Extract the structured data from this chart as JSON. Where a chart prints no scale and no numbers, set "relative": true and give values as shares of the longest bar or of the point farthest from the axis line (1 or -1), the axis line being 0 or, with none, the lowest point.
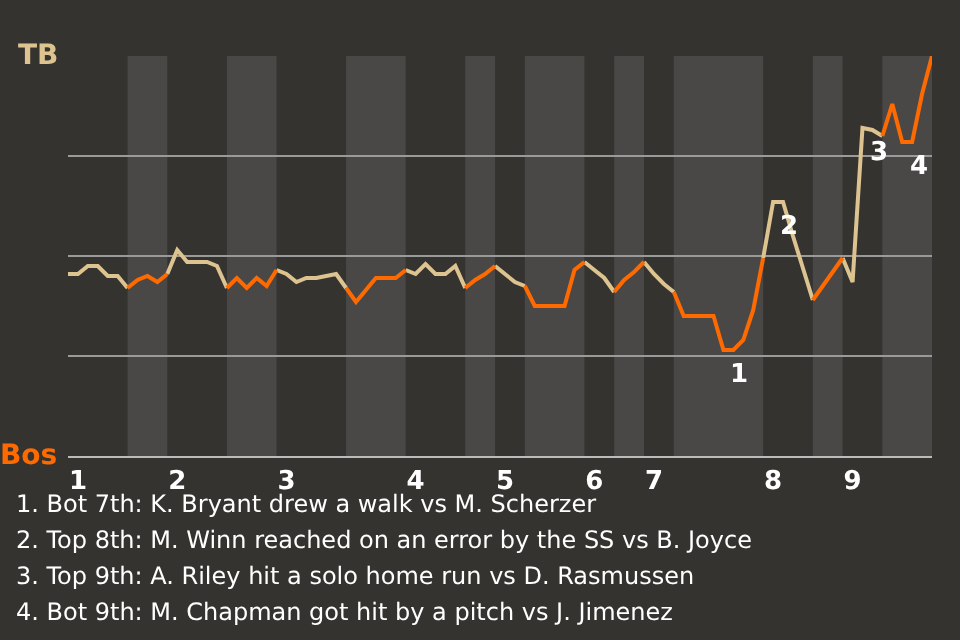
{
  "chart_data": {
    "type": "line",
    "relative": true,
    "categories": [
      null,
      "1",
      null,
      null,
      null,
      null,
      null,
      null,
      null,
      null,
      null,
      "2",
      null,
      null,
      null,
      null,
      null,
      null,
      null,
      null,
      null,
      null,
      "3",
      null,
      null,
      null,
      null,
      null,
      null,
      null,
      null,
      null,
      null,
      null,
      null,
      "4",
      null,
      null,
      null,
      null,
      null,
      null,
      null,
      null,
      "5",
      null,
      null,
      null,
      null,
      null,
      null,
      null,
      null,
      "6",
      null,
      null,
      null,
      null,
      null,
      "7",
      null,
      null,
      null,
      null,
      null,
      null,
      null,
      null,
      null,
      null,
      null,
      "8",
      null,
      null,
      null,
      null,
      null,
      null,
      null,
      "9",
      null,
      null,
      null,
      null,
      null,
      null,
      null,
      null
    ],
    "series": [
      {
        "name": "TB",
        "color": "#dcc38f",
        "values": [
          0.455,
          0.455,
          0.475,
          0.475,
          0.45,
          0.45,
          0.42,
          null,
          null,
          null,
          0.455,
          0.515,
          0.485,
          0.485,
          0.485,
          0.475,
          0.42,
          null,
          null,
          null,
          null,
          0.465,
          0.455,
          0.435,
          0.445,
          0.445,
          0.45,
          0.455,
          0.42,
          null,
          null,
          null,
          null,
          null,
          0.465,
          0.455,
          0.48,
          0.455,
          0.455,
          0.475,
          0.42,
          null,
          null,
          0.475,
          0.455,
          0.435,
          0.425,
          null,
          null,
          null,
          null,
          null,
          0.485,
          0.465,
          0.445,
          0.41,
          null,
          null,
          0.485,
          0.455,
          0.43,
          0.41,
          null,
          null,
          null,
          null,
          null,
          null,
          null,
          null,
          0.495,
          0.635,
          0.635,
          0.55,
          0.47,
          0.39,
          null,
          null,
          0.495,
          0.435,
          0.82,
          0.815,
          0.8,
          null,
          null,
          null,
          null,
          null
        ]
      },
      {
        "name": "Bos",
        "color": "#ff6a00",
        "values": [
          null,
          null,
          null,
          null,
          null,
          null,
          0.42,
          0.44,
          0.45,
          0.435,
          0.455,
          null,
          null,
          null,
          null,
          null,
          0.42,
          0.445,
          0.42,
          0.445,
          0.425,
          0.465,
          null,
          null,
          null,
          null,
          null,
          null,
          0.42,
          0.385,
          0.415,
          0.445,
          0.445,
          0.445,
          0.465,
          null,
          null,
          null,
          null,
          null,
          0.42,
          0.44,
          0.455,
          0.475,
          null,
          null,
          0.425,
          0.375,
          0.375,
          0.375,
          0.375,
          0.465,
          0.485,
          null,
          null,
          0.41,
          0.44,
          0.46,
          0.485,
          null,
          null,
          0.41,
          0.35,
          0.35,
          0.35,
          0.35,
          0.265,
          0.265,
          0.29,
          0.365,
          0.495,
          null,
          null,
          null,
          null,
          0.39,
          0.425,
          0.46,
          0.495,
          null,
          null,
          null,
          0.8,
          0.88,
          0.785,
          0.785,
          0.905,
          1
        ]
      }
    ],
    "grid": "y",
    "marker": "none",
    "line_style": "solid",
    "annotations": [
      {
        "text": "1",
        "y": 0.265
      },
      {
        "text": "2",
        "y": 0.635
      },
      {
        "text": "3",
        "y": 0.82
      },
      {
        "text": "4",
        "y": 0.785
      },
      "1. Bot 7th: K. Bryant drew a walk vs M. Scherzer",
      "2. Top 8th: M. Winn reached on an error by the SS vs B. Joyce",
      "3. Top 9th: A. Riley hit a solo home run vs D. Rasmussen",
      "4. Bot 9th: M. Chapman got hit by a pitch vs J. Jimenez"
    ]
  }
}
